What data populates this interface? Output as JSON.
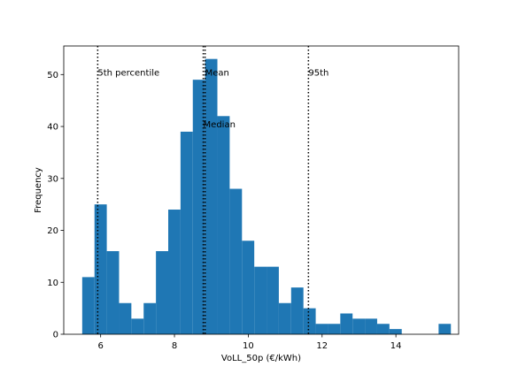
{
  "chart_data": {
    "type": "histogram",
    "xlabel": "VoLL_50p (€/kWh)",
    "ylabel": "Frequency",
    "xlim": [
      5.0,
      15.7
    ],
    "ylim": [
      0,
      55.5
    ],
    "xticks": [
      6,
      8,
      10,
      12,
      14
    ],
    "yticks": [
      0,
      10,
      20,
      30,
      40,
      50
    ],
    "bar_color": "#1f77b4",
    "bin_start": 5.5,
    "bin_width": 0.333,
    "counts": [
      11,
      25,
      16,
      6,
      3,
      6,
      16,
      24,
      39,
      49,
      53,
      42,
      28,
      18,
      13,
      13,
      6,
      9,
      5,
      2,
      2,
      4,
      3,
      3,
      2,
      1,
      0,
      0,
      0,
      2
    ],
    "reference_lines": [
      {
        "label": "5th percentile",
        "x": 5.92,
        "label_y": 50.5
      },
      {
        "label": "Mean",
        "x": 8.83,
        "label_y": 50.5
      },
      {
        "label": "Median",
        "x": 8.78,
        "label_y": 40.5
      },
      {
        "label": "95th",
        "x": 11.63,
        "label_y": 50.5
      }
    ]
  }
}
